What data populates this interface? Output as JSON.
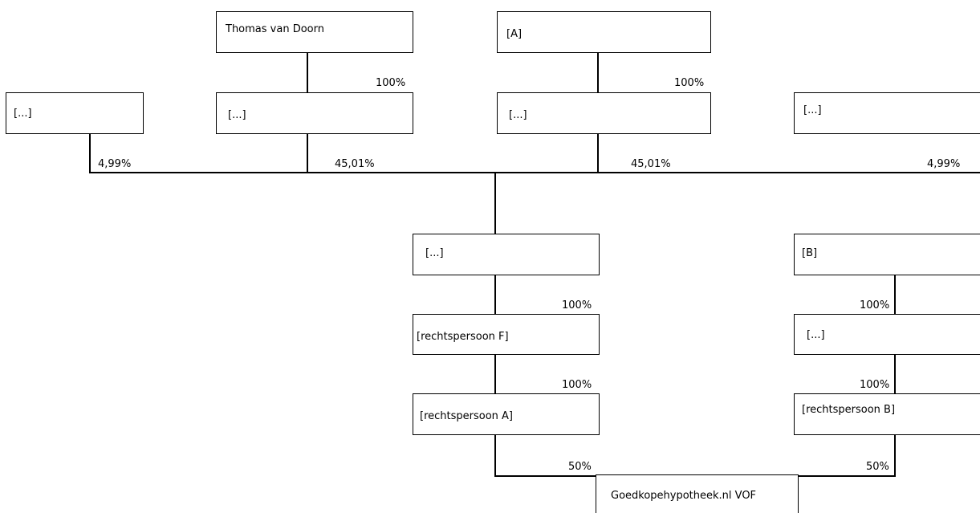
{
  "boxes": {
    "thomas": "Thomas van Doorn",
    "a": "[A]",
    "top_far_left": "[...]",
    "holding_thomas": "[...]",
    "holding_a": "[...]",
    "top_far_right": "[...]",
    "middle": "[...]",
    "b": "[B]",
    "rechtspersoon_f": "[rechtspersoon F]",
    "holding_b": "[...]",
    "rechtspersoon_a": "[rechtspersoon A]",
    "rechtspersoon_b": "[rechtspersoon B]",
    "vof": "Goedkopehypotheek.nl VOF"
  },
  "percentages": {
    "thomas_to_holding": "100%",
    "a_to_holding": "100%",
    "far_left_share": "4,99%",
    "holding_thomas_share": "45,01%",
    "holding_a_share": "45,01%",
    "far_right_share": "4,99%",
    "middle_to_f": "100%",
    "f_to_rpa": "100%",
    "b_to_holding": "100%",
    "holding_b_to_rpb": "100%",
    "rpa_to_vof": "50%",
    "rpb_to_vof": "50%"
  }
}
